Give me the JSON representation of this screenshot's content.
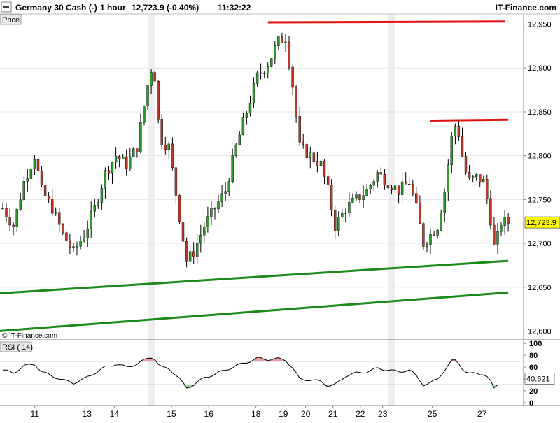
{
  "header": {
    "instrument": "Germany 30 Cash (-)",
    "timeframe": "1 hour",
    "change": "12,723.9 (-0.40%)",
    "time": "11:32:22",
    "brand": "IT-Finance.com"
  },
  "price_panel_label": "Price",
  "rsi_panel_label": "RSI ( 14)",
  "watermark": "© IT-Finance.com",
  "colors": {
    "up_candle": "#2e9c2e",
    "down_candle": "#c0392b",
    "wick": "#000000",
    "resistance": "#e31212",
    "support": "#1b8a1b",
    "rsi_line": "#000000",
    "rsi_band": "#5050aa",
    "rsi_overbought_fill": "#e8a0a0",
    "rsi_oversold_fill": "#9fd09f",
    "last_price_box": "#ffff00",
    "weekend_shade": "#eeeeee"
  },
  "chart_data": [
    {
      "type": "candlestick",
      "title": "Germany 30 Cash (-)",
      "timeframe": "1 hour",
      "x_tick_labels": [
        "11",
        "13",
        "14",
        "15",
        "16",
        "18",
        "19",
        "20",
        "21",
        "22",
        "23",
        "25",
        "27"
      ],
      "y_ticks": [
        12600,
        12650,
        12700,
        12750,
        12800,
        12850,
        12900,
        12950
      ],
      "y_tick_labels": [
        "12,600",
        "12,650",
        "12,700",
        "12,750",
        "12,800",
        "12,850",
        "12,900",
        "12,950"
      ],
      "ylim": [
        12590,
        12960
      ],
      "last_price": 12723.9,
      "last_price_label": "12,723.9",
      "close_path": [
        [
          0,
          12740
        ],
        [
          1.5,
          12720
        ],
        [
          3,
          12770
        ],
        [
          4.5,
          12800
        ],
        [
          5.5,
          12760
        ],
        [
          7,
          12740
        ],
        [
          8.5,
          12710
        ],
        [
          10,
          12690
        ],
        [
          11.5,
          12710
        ],
        [
          13,
          12740
        ],
        [
          14.5,
          12780
        ],
        [
          16,
          12800
        ],
        [
          17.5,
          12790
        ],
        [
          19,
          12810
        ],
        [
          20.5,
          12880
        ],
        [
          21.3,
          12910
        ],
        [
          22.2,
          12820
        ],
        [
          23.5,
          12810
        ],
        [
          25,
          12730
        ],
        [
          26,
          12680
        ],
        [
          27,
          12690
        ],
        [
          28.5,
          12720
        ],
        [
          30,
          12740
        ],
        [
          31.5,
          12760
        ],
        [
          33,
          12810
        ],
        [
          34.5,
          12850
        ],
        [
          36,
          12890
        ],
        [
          37.5,
          12905
        ],
        [
          39,
          12930
        ],
        [
          40,
          12935
        ],
        [
          41,
          12880
        ],
        [
          42,
          12810
        ],
        [
          43.5,
          12800
        ],
        [
          45,
          12790
        ],
        [
          46,
          12760
        ],
        [
          47,
          12720
        ],
        [
          48.5,
          12740
        ],
        [
          50,
          12750
        ],
        [
          51.5,
          12760
        ],
        [
          53,
          12780
        ],
        [
          54.5,
          12770
        ],
        [
          56,
          12760
        ],
        [
          57.5,
          12770
        ],
        [
          58.5,
          12740
        ],
        [
          59.5,
          12700
        ],
        [
          60.5,
          12710
        ],
        [
          61.5,
          12720
        ],
        [
          62.5,
          12760
        ],
        [
          63.5,
          12820
        ],
        [
          64.2,
          12840
        ],
        [
          65,
          12800
        ],
        [
          65.8,
          12770
        ],
        [
          67,
          12775
        ],
        [
          68,
          12770
        ],
        [
          68.8,
          12740
        ],
        [
          69.6,
          12690
        ],
        [
          70.4,
          12724
        ]
      ],
      "support_lines": [
        {
          "from": [
            -0.5,
            12643
          ],
          "to": [
            71.5,
            12680
          ]
        },
        {
          "from": [
            -0.5,
            12600
          ],
          "to": [
            71.5,
            12644
          ]
        }
      ],
      "resistance_lines": [
        {
          "from": [
            37.5,
            12952
          ],
          "to": [
            71,
            12953
          ]
        },
        {
          "from": [
            60.5,
            12840
          ],
          "to": [
            71.5,
            12841
          ]
        }
      ],
      "weekend_gaps": [
        [
          20.5,
          21.5
        ],
        [
          54.5,
          55.5
        ]
      ]
    },
    {
      "type": "line",
      "title": "RSI ( 14)",
      "y_ticks": [
        0,
        20,
        40,
        60,
        80,
        100
      ],
      "y_tick_labels": [
        "0",
        "20",
        "40",
        "60",
        "80",
        "100"
      ],
      "ylim": [
        -5,
        105
      ],
      "bands": [
        30,
        70
      ],
      "last_value": 40.621,
      "last_value_label": "40.621",
      "values_path": [
        [
          0,
          55
        ],
        [
          1.5,
          50
        ],
        [
          3,
          62
        ],
        [
          4.5,
          65
        ],
        [
          5.5,
          52
        ],
        [
          7,
          45
        ],
        [
          8.5,
          38
        ],
        [
          10,
          33
        ],
        [
          11.5,
          40
        ],
        [
          13,
          50
        ],
        [
          14.5,
          60
        ],
        [
          16,
          65
        ],
        [
          17.5,
          60
        ],
        [
          19,
          65
        ],
        [
          20.5,
          75
        ],
        [
          21.3,
          78
        ],
        [
          22.2,
          60
        ],
        [
          23.5,
          58
        ],
        [
          25,
          40
        ],
        [
          26,
          25
        ],
        [
          27,
          30
        ],
        [
          28.5,
          42
        ],
        [
          30,
          48
        ],
        [
          31.5,
          55
        ],
        [
          33,
          62
        ],
        [
          34.5,
          68
        ],
        [
          36,
          75
        ],
        [
          37.5,
          73
        ],
        [
          39,
          74
        ],
        [
          40,
          72
        ],
        [
          41,
          58
        ],
        [
          42,
          40
        ],
        [
          43.5,
          38
        ],
        [
          45,
          36
        ],
        [
          46,
          28
        ],
        [
          47,
          30
        ],
        [
          48.5,
          45
        ],
        [
          50,
          50
        ],
        [
          51.5,
          52
        ],
        [
          53,
          58
        ],
        [
          54.5,
          55
        ],
        [
          56,
          52
        ],
        [
          57.5,
          55
        ],
        [
          58.5,
          45
        ],
        [
          59.5,
          30
        ],
        [
          60.5,
          33
        ],
        [
          61.5,
          40
        ],
        [
          62.5,
          55
        ],
        [
          63.5,
          70
        ],
        [
          64.2,
          72
        ],
        [
          65,
          58
        ],
        [
          65.8,
          48
        ],
        [
          67,
          50
        ],
        [
          68,
          48
        ],
        [
          68.8,
          40
        ],
        [
          69.6,
          22
        ],
        [
          70.4,
          40.6
        ]
      ]
    }
  ]
}
